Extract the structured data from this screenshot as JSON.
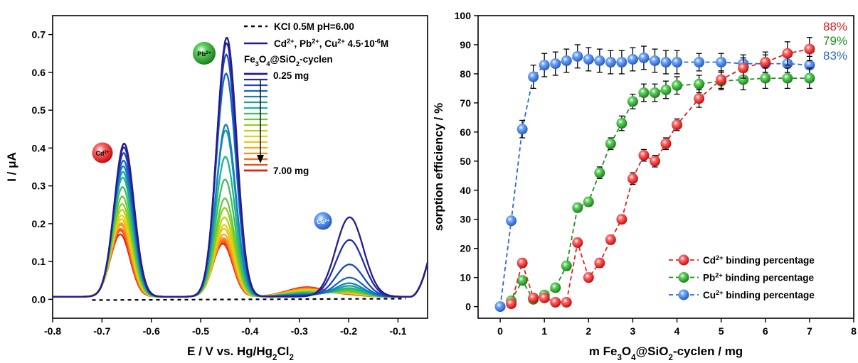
{
  "chart_data": [
    {
      "type": "line",
      "xlabel": "E / V vs. Hg/Hg₂Cl₂",
      "ylabel": "I / μA",
      "xlim": [
        -0.8,
        -0.04
      ],
      "ylim": [
        -0.05,
        0.75
      ],
      "x_ticks": [
        "-0.8",
        "-0.7",
        "-0.6",
        "-0.5",
        "-0.4",
        "-0.3",
        "-0.2",
        "-0.1"
      ],
      "y_ticks": [
        "0.0",
        "0.1",
        "0.2",
        "0.3",
        "0.4",
        "0.5",
        "0.6",
        "0.7"
      ],
      "legend": [
        {
          "label": "KCl 0.5M pH=6.00",
          "style": "dashed",
          "color": "#000000"
        },
        {
          "label": "Cd²⁺, Pb²⁺, Cu²⁺ 4.5·10⁻⁶M",
          "style": "solid",
          "color": "#2a1a8a"
        }
      ],
      "material_label": "Fe₃O₄@SiO₂-cyclen",
      "gradient_start": "0.25 mg",
      "gradient_end": "7.00 mg",
      "peak_badges": [
        "Cd²⁺",
        "Pb²⁺",
        "Cu²⁺"
      ],
      "peak_badge_colors": [
        "#e02020",
        "#1f8f1f",
        "#2a55c8"
      ],
      "baseline": -0.005,
      "peaks": [
        {
          "center": -0.655,
          "width": 0.02,
          "heights": [
            0.405,
            0.395,
            0.38,
            0.36,
            0.345,
            0.33,
            0.315,
            0.29,
            0.265,
            0.245,
            0.23,
            0.215,
            0.205,
            0.195,
            0.19,
            0.18,
            0.175,
            0.165
          ]
        },
        {
          "center": -0.447,
          "width": 0.02,
          "heights": [
            0.685,
            0.67,
            0.64,
            0.59,
            0.455,
            0.44,
            0.37,
            0.31,
            0.26,
            0.235,
            0.21,
            0.19,
            0.18,
            0.165,
            0.155,
            0.15,
            0.145,
            0.14
          ]
        },
        {
          "center": -0.198,
          "width": 0.028,
          "heights": [
            0.21,
            0.15,
            0.085,
            0.05,
            0.035,
            0.028,
            0.022,
            0.018,
            0.014,
            0.012,
            0.01,
            0.009,
            0.008,
            0.007,
            0.006,
            0.005,
            0.005,
            0.004
          ]
        }
      ]
    },
    {
      "type": "scatter",
      "xlabel": "m Fe₃O₄@SiO₂-cyclen / mg",
      "ylabel": "sorption efficiency / %",
      "xlim": [
        -0.5,
        8
      ],
      "ylim": [
        -4,
        100
      ],
      "x_ticks": [
        "0",
        "1",
        "2",
        "3",
        "4",
        "5",
        "6",
        "7",
        "8"
      ],
      "y_ticks": [
        "0",
        "10",
        "20",
        "30",
        "40",
        "50",
        "60",
        "70",
        "80",
        "90",
        "100"
      ],
      "series": [
        {
          "name": "Cd²⁺ binding percentage",
          "color": "#e02020",
          "final_label": "88%",
          "x": [
            0.25,
            0.5,
            0.75,
            1.0,
            1.25,
            1.5,
            1.75,
            2.0,
            2.25,
            2.5,
            2.75,
            3.0,
            3.25,
            3.5,
            3.75,
            4.0,
            4.5,
            5.0,
            5.5,
            6.0,
            6.5,
            7.0
          ],
          "y": [
            1,
            15,
            3,
            3,
            1.5,
            1.5,
            22,
            10,
            15,
            23,
            30,
            44,
            52,
            50,
            56,
            62.5,
            71.5,
            78,
            82,
            84,
            87,
            88.5
          ],
          "err": [
            1,
            1.5,
            1,
            1,
            1,
            1,
            1.5,
            1.5,
            1.5,
            1.5,
            1.5,
            2,
            2,
            2,
            2,
            2,
            3,
            3,
            3.5,
            3.5,
            4,
            4
          ]
        },
        {
          "name": "Pb²⁺ binding percentage",
          "color": "#1f8f1f",
          "final_label": "79%",
          "x": [
            0.25,
            0.5,
            0.75,
            1.0,
            1.25,
            1.5,
            1.75,
            2.0,
            2.25,
            2.5,
            2.75,
            3.0,
            3.25,
            3.5,
            3.75,
            4.0,
            4.5,
            5.0,
            5.5,
            6.0,
            6.5,
            7.0
          ],
          "y": [
            2,
            9,
            2.5,
            4,
            6.5,
            14,
            34,
            36,
            46,
            56,
            63,
            70.5,
            73.5,
            73.5,
            74.5,
            76,
            76.5,
            77.5,
            78,
            78.5,
            78.5,
            78.5
          ],
          "err": [
            1,
            1.5,
            1,
            1,
            1,
            1.5,
            1.5,
            1.5,
            2,
            2,
            2.5,
            2.5,
            3,
            3,
            3,
            3,
            3,
            3,
            3.5,
            3.5,
            3.5,
            3.5
          ]
        },
        {
          "name": "Cu²⁺ binding percentage",
          "color": "#2a6ac8",
          "final_label": "83%",
          "x": [
            0,
            0.25,
            0.5,
            0.75,
            1.0,
            1.25,
            1.5,
            1.75,
            2.0,
            2.25,
            2.5,
            2.75,
            3.0,
            3.25,
            3.5,
            3.75,
            4.0,
            4.5,
            5.0,
            5.5,
            6.0,
            6.5,
            7.0
          ],
          "y": [
            0,
            29.5,
            61,
            79,
            83,
            83.5,
            84.5,
            86,
            85,
            84.5,
            84,
            84,
            85,
            85.5,
            84.5,
            84,
            84,
            84,
            84,
            83.5,
            83.5,
            83.5,
            83
          ],
          "err": [
            0.5,
            1,
            3,
            4,
            4,
            4,
            4,
            4,
            4,
            4,
            4,
            4,
            4,
            4,
            4,
            4,
            4,
            3,
            3,
            3,
            3,
            3,
            3
          ]
        }
      ]
    }
  ]
}
